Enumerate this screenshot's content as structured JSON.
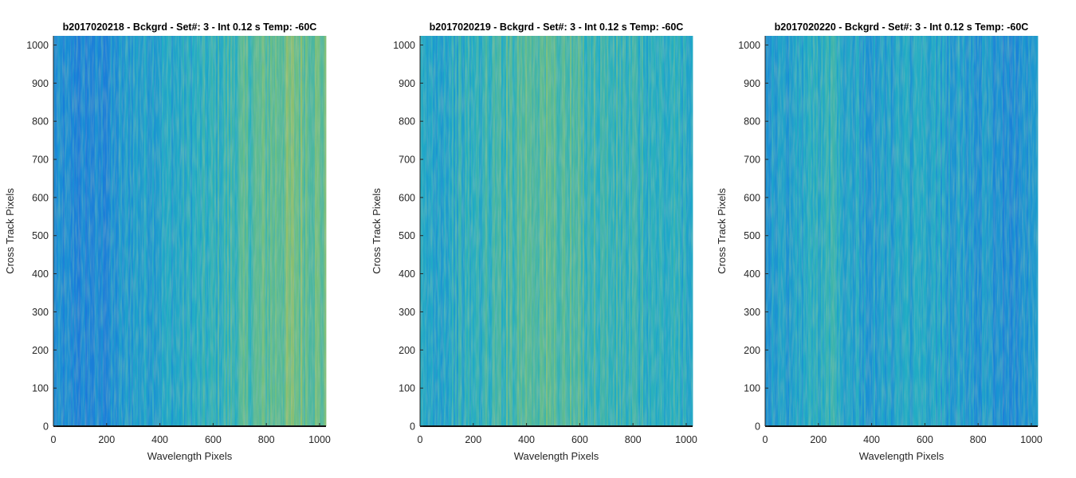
{
  "chart_data": [
    {
      "type": "heatmap",
      "title": "b2017020218 - Bckgrd - Set#: 3 - Int 0.12 s Temp: -60C",
      "xlabel": "Wavelength Pixels",
      "ylabel": "Cross Track Pixels",
      "xlim": [
        0,
        1024
      ],
      "ylim": [
        0,
        1024
      ],
      "xticks": [
        0,
        200,
        400,
        600,
        800,
        1000
      ],
      "yticks": [
        0,
        100,
        200,
        300,
        400,
        500,
        600,
        700,
        800,
        900,
        1000
      ],
      "colormap": "parula",
      "column_profile": {
        "x": [
          0,
          100,
          200,
          300,
          400,
          500,
          600,
          700,
          800,
          900,
          1024
        ],
        "relative_level": [
          0.25,
          0.18,
          0.22,
          0.38,
          0.42,
          0.45,
          0.5,
          0.6,
          0.68,
          0.75,
          0.7
        ]
      }
    },
    {
      "type": "heatmap",
      "title": "b2017020219 - Bckgrd - Set#: 3 - Int 0.12 s Temp: -60C",
      "xlabel": "Wavelength Pixels",
      "ylabel": "Cross Track Pixels",
      "xlim": [
        0,
        1024
      ],
      "ylim": [
        0,
        1024
      ],
      "xticks": [
        0,
        200,
        400,
        600,
        800,
        1000
      ],
      "yticks": [
        0,
        100,
        200,
        300,
        400,
        500,
        600,
        700,
        800,
        900,
        1000
      ],
      "colormap": "parula",
      "column_profile": {
        "x": [
          0,
          100,
          200,
          300,
          400,
          500,
          600,
          700,
          800,
          900,
          1024
        ],
        "relative_level": [
          0.4,
          0.45,
          0.5,
          0.58,
          0.68,
          0.66,
          0.6,
          0.56,
          0.52,
          0.48,
          0.5
        ]
      }
    },
    {
      "type": "heatmap",
      "title": "b2017020220 - Bckgrd - Set#: 3 - Int 0.12 s Temp: -60C",
      "xlabel": "Wavelength Pixels",
      "ylabel": "Cross Track Pixels",
      "xlim": [
        0,
        1024
      ],
      "ylim": [
        0,
        1024
      ],
      "xticks": [
        0,
        200,
        400,
        600,
        800,
        1000
      ],
      "yticks": [
        0,
        100,
        200,
        300,
        400,
        500,
        600,
        700,
        800,
        900,
        1000
      ],
      "colormap": "parula",
      "column_profile": {
        "x": [
          0,
          100,
          200,
          250,
          300,
          400,
          500,
          600,
          700,
          800,
          900,
          1024
        ],
        "relative_level": [
          0.35,
          0.38,
          0.5,
          0.58,
          0.45,
          0.35,
          0.4,
          0.42,
          0.38,
          0.32,
          0.25,
          0.32
        ]
      }
    }
  ],
  "colors": {
    "axis": "#262626",
    "baseline": "#111111",
    "parula_low": "#1a7ad8",
    "parula_mid": "#27b0bc",
    "parula_high": "#d6c23e"
  }
}
